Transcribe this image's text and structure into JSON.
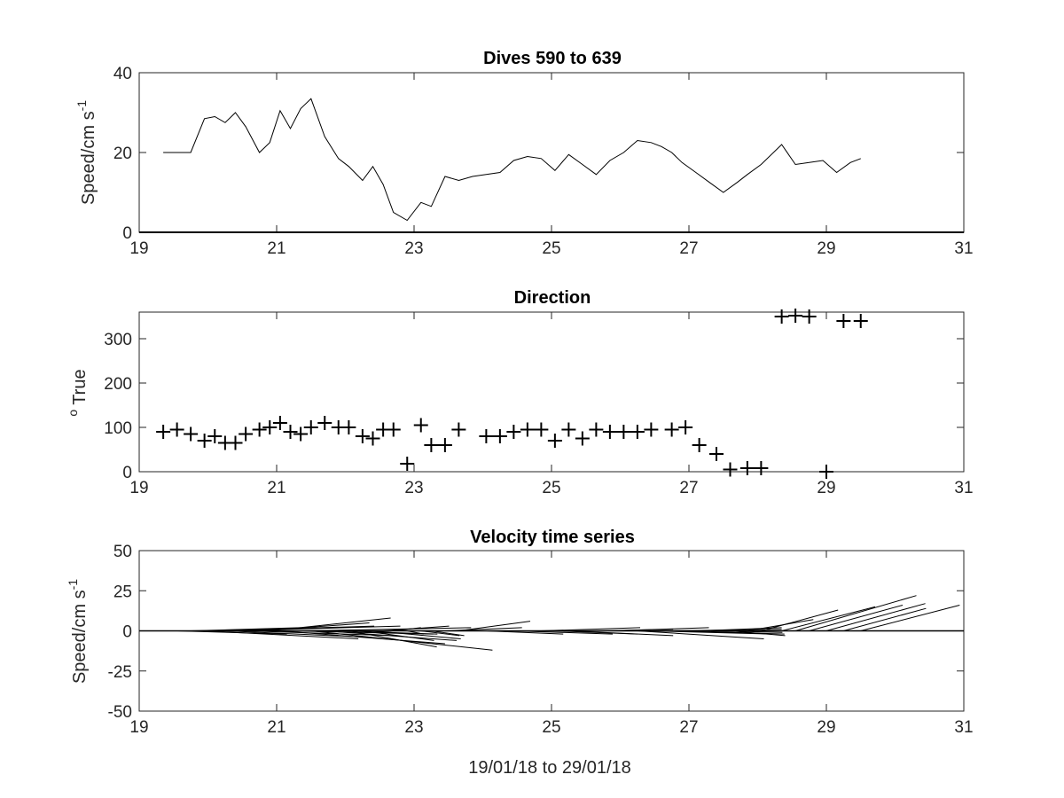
{
  "chart_data": [
    {
      "type": "line",
      "title": "Dives 590 to 639",
      "ylabel_main": "Speed/cm s",
      "ylabel_sup": "-1",
      "xlabel": "",
      "xlim": [
        19,
        31
      ],
      "ylim": [
        0,
        40
      ],
      "xticks": [
        19,
        21,
        23,
        25,
        27,
        29,
        31
      ],
      "yticks": [
        0,
        20,
        40
      ],
      "baseline": 0,
      "x": [
        19.35,
        19.55,
        19.75,
        19.95,
        20.1,
        20.25,
        20.4,
        20.55,
        20.75,
        20.9,
        21.05,
        21.2,
        21.35,
        21.5,
        21.7,
        21.9,
        22.05,
        22.25,
        22.4,
        22.55,
        22.7,
        22.9,
        23.1,
        23.25,
        23.45,
        23.65,
        23.85,
        24.05,
        24.25,
        24.45,
        24.65,
        24.85,
        25.05,
        25.25,
        25.45,
        25.65,
        25.85,
        26.05,
        26.25,
        26.45,
        26.6,
        26.75,
        26.9,
        27.1,
        27.3,
        27.5,
        27.7,
        27.85,
        28.05,
        28.35,
        28.55,
        28.75,
        28.95,
        29.15,
        29.35,
        29.5
      ],
      "y": [
        20,
        20,
        20,
        28.5,
        29,
        27.5,
        30,
        26.5,
        20,
        22.5,
        30.5,
        26,
        31,
        33.5,
        24,
        18.5,
        16.5,
        13,
        16.5,
        12,
        5,
        3,
        7.5,
        6.5,
        14,
        13,
        14,
        14.5,
        15,
        18,
        19,
        18.5,
        15.5,
        19.5,
        17,
        14.5,
        18,
        20,
        23,
        22.5,
        21.5,
        20,
        17.5,
        15,
        12.5,
        10,
        12.5,
        14.5,
        17,
        22,
        17,
        17.5,
        18,
        15,
        17.5,
        18.5
      ]
    },
    {
      "type": "scatter",
      "title": "Direction",
      "ylabel_main": "True",
      "ylabel_sup": "o",
      "xlim": [
        19,
        31
      ],
      "ylim": [
        0,
        360
      ],
      "xticks": [
        19,
        21,
        23,
        25,
        27,
        29,
        31
      ],
      "yticks": [
        0,
        100,
        200,
        300
      ],
      "x": [
        19.35,
        19.55,
        19.75,
        19.95,
        20.1,
        20.25,
        20.4,
        20.55,
        20.75,
        20.9,
        21.05,
        21.2,
        21.35,
        21.5,
        21.7,
        21.9,
        22.05,
        22.25,
        22.4,
        22.55,
        22.7,
        22.9,
        23.1,
        23.25,
        23.45,
        23.65,
        24.05,
        24.25,
        24.45,
        24.65,
        24.85,
        25.05,
        25.25,
        25.45,
        25.65,
        25.85,
        26.05,
        26.25,
        26.45,
        26.75,
        26.95,
        27.15,
        27.4,
        27.6,
        27.85,
        28.05,
        28.35,
        28.55,
        28.75,
        29.0,
        29.25,
        29.5
      ],
      "y": [
        90,
        95,
        85,
        70,
        80,
        65,
        65,
        85,
        95,
        100,
        110,
        90,
        85,
        100,
        110,
        100,
        100,
        80,
        75,
        95,
        95,
        18,
        105,
        60,
        60,
        95,
        80,
        80,
        90,
        95,
        95,
        70,
        95,
        75,
        95,
        90,
        90,
        90,
        95,
        95,
        100,
        60,
        40,
        5,
        8,
        8,
        350,
        352,
        350,
        0,
        340,
        340
      ]
    },
    {
      "type": "vector",
      "title": "Velocity time series",
      "ylabel_main": "Speed/cm s",
      "ylabel_sup": "-1",
      "xlabel": "19/01/18 to 29/01/18",
      "xlim": [
        19,
        31
      ],
      "ylim": [
        -50,
        50
      ],
      "xticks": [
        19,
        21,
        23,
        25,
        27,
        29,
        31
      ],
      "yticks": [
        -50,
        -25,
        0,
        25,
        50
      ],
      "baseline": 0,
      "x": [
        19.35,
        19.55,
        19.75,
        19.95,
        20.1,
        20.25,
        20.4,
        20.55,
        20.75,
        20.9,
        21.05,
        21.2,
        21.35,
        21.5,
        21.7,
        21.9,
        22.05,
        22.25,
        22.4,
        22.55,
        22.7,
        22.9,
        23.1,
        23.25,
        23.45,
        23.65,
        24.05,
        24.25,
        24.45,
        24.65,
        24.85,
        25.05,
        25.25,
        25.45,
        25.65,
        25.85,
        26.05,
        26.25,
        26.45,
        26.75,
        26.95,
        27.15,
        27.4,
        27.6,
        27.85,
        28.05,
        28.35,
        28.55,
        28.75,
        29.0,
        29.25,
        29.5
      ],
      "u": [
        20,
        20,
        20,
        28,
        29,
        26,
        30,
        27,
        20,
        22,
        30,
        26,
        31,
        33,
        24,
        18,
        16,
        13,
        16,
        12,
        5,
        3,
        7,
        6,
        14,
        13,
        14,
        15,
        18,
        19,
        18,
        15,
        19,
        17,
        14,
        18,
        20,
        23,
        22,
        20,
        18,
        15,
        12,
        10,
        12,
        14,
        17,
        22,
        17,
        18,
        15,
        18
      ],
      "v": [
        0,
        -2,
        2,
        -5,
        3,
        -4,
        3,
        -3,
        5,
        8,
        -8,
        -2,
        2,
        -12,
        -6,
        -2,
        -10,
        -6,
        -5,
        3,
        2,
        -2,
        -3,
        -3,
        2,
        6,
        -2,
        0,
        -2,
        0,
        2,
        -2,
        -3,
        0,
        1,
        2,
        0,
        -5,
        -2,
        1,
        -2,
        2,
        -1,
        -3,
        7,
        13,
        15,
        22,
        16,
        17,
        14,
        16
      ]
    }
  ]
}
